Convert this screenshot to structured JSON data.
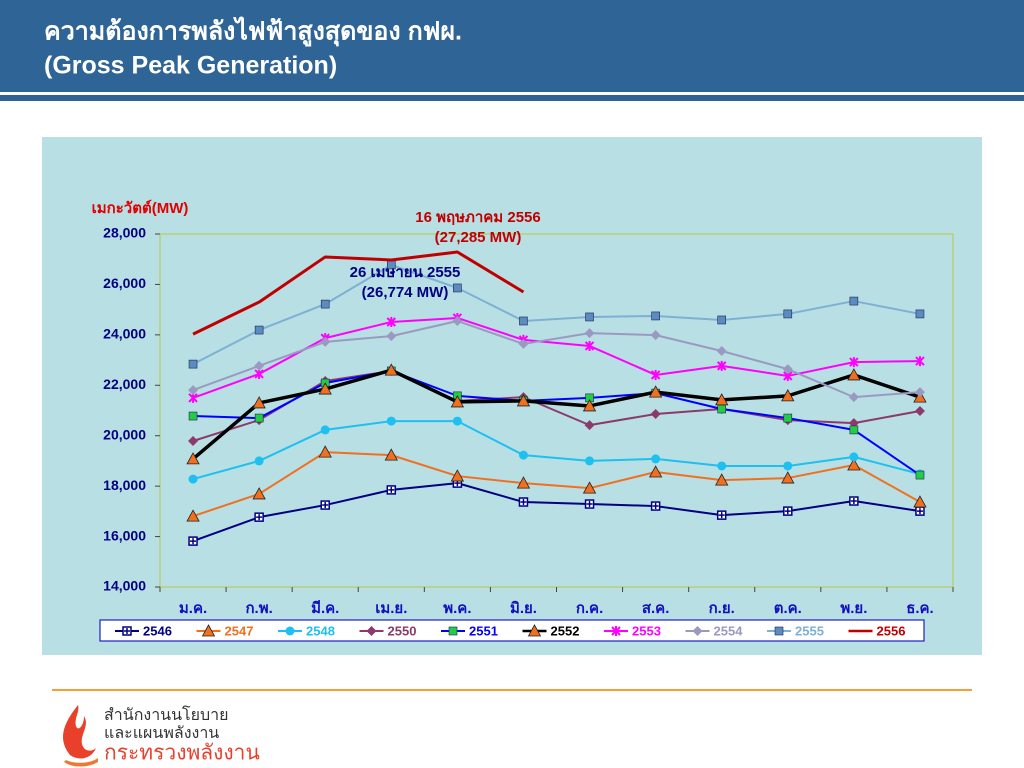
{
  "header": {
    "title_lines": [
      "ความต้องการพลังไฟฟ้าสูงสุดของ กฟผ.",
      "(Gross Peak Generation)"
    ]
  },
  "chart_data": {
    "type": "line",
    "y_label": "เมกะวัตต์(MW)",
    "categories": [
      "ม.ค.",
      "ก.พ.",
      "มี.ค.",
      "เม.ย.",
      "พ.ค.",
      "มิ.ย.",
      "ก.ค.",
      "ส.ค.",
      "ก.ย.",
      "ต.ค.",
      "พ.ย.",
      "ธ.ค."
    ],
    "ylim": [
      14000,
      28000
    ],
    "yticks": [
      {
        "value": 14000,
        "label": "14,000"
      },
      {
        "value": 16000,
        "label": "16,000"
      },
      {
        "value": 18000,
        "label": "18,000"
      },
      {
        "value": 20000,
        "label": "20,000"
      },
      {
        "value": 22000,
        "label": "22,000"
      },
      {
        "value": 24000,
        "label": "24,000"
      },
      {
        "value": 26000,
        "label": "26,000"
      },
      {
        "value": 28000,
        "label": "28,000"
      }
    ],
    "grid": false,
    "legend": "bottom",
    "series": [
      {
        "name": "2546",
        "color": "#000080",
        "marker": "square-plus",
        "marker_color": "#000080",
        "values": [
          15820,
          16770,
          17250,
          17850,
          18120,
          17370,
          17290,
          17210,
          16850,
          17010,
          17410,
          17010
        ]
      },
      {
        "name": "2547",
        "color": "#f07020",
        "marker": "triangle",
        "marker_color": "#f07020",
        "values": [
          16810,
          17690,
          19350,
          19230,
          18400,
          18120,
          17920,
          18560,
          18240,
          18320,
          18840,
          17370
        ]
      },
      {
        "name": "2548",
        "color": "#1ec0f0",
        "marker": "circle",
        "marker_color": "#1ec0f0",
        "values": [
          18280,
          19000,
          20230,
          20580,
          20580,
          19230,
          19000,
          19080,
          18800,
          18800,
          19160,
          18480
        ]
      },
      {
        "name": "2550",
        "color": "#8b3a6b",
        "marker": "diamond",
        "marker_color": "#8b3a6b",
        "values": [
          19790,
          20620,
          22170,
          22570,
          21380,
          21530,
          20420,
          20860,
          21060,
          20620,
          20500,
          20980
        ]
      },
      {
        "name": "2551",
        "color": "#0000ff",
        "marker": "square",
        "marker_color": "#22cc44",
        "values": [
          20780,
          20700,
          22090,
          22570,
          21580,
          21380,
          21500,
          21690,
          21060,
          20700,
          20230,
          18440
        ]
      },
      {
        "name": "2552",
        "color": "#000000",
        "marker": "triangle",
        "marker_color": "#f07020",
        "line_width": 3.5,
        "values": [
          19080,
          21300,
          21850,
          22600,
          21340,
          21380,
          21180,
          21730,
          21420,
          21580,
          22410,
          21530
        ]
      },
      {
        "name": "2553",
        "color": "#ff00ff",
        "marker": "star",
        "marker_color": "#ff00ff",
        "values": [
          21500,
          22450,
          23870,
          24510,
          24670,
          23800,
          23560,
          22410,
          22770,
          22370,
          22920,
          22960
        ]
      },
      {
        "name": "2554",
        "color": "#9a9ac0",
        "marker": "diamond",
        "marker_color": "#9a9ac0",
        "values": [
          21810,
          22770,
          23720,
          23950,
          24550,
          23640,
          24070,
          23990,
          23360,
          22640,
          21530,
          21730
        ]
      },
      {
        "name": "2555",
        "color": "#7eb0d4",
        "marker": "square",
        "marker_color": "#5a8cc0",
        "values": [
          22840,
          24190,
          25220,
          26774,
          25860,
          24550,
          24710,
          24750,
          24590,
          24830,
          25340,
          24830
        ]
      },
      {
        "name": "2556",
        "color": "#c00000",
        "marker": "none",
        "marker_color": "#c00000",
        "line_width": 3,
        "values": [
          24030,
          25300,
          27090,
          26970,
          27285,
          25700,
          null,
          null,
          null,
          null,
          null,
          null
        ]
      }
    ],
    "annotations": [
      {
        "lines": [
          "16 พฤษภาคม 2556",
          "(27,285 MW)"
        ],
        "color": "#c00000"
      },
      {
        "lines": [
          "26 เมษายน 2555",
          "(26,774 MW)"
        ],
        "color": "#000080"
      }
    ]
  },
  "footer": {
    "org_lines": [
      "สำนักงานนโยบาย",
      "และแผนพลังงาน"
    ],
    "ministry": "กระทรวงพลังงาน"
  }
}
